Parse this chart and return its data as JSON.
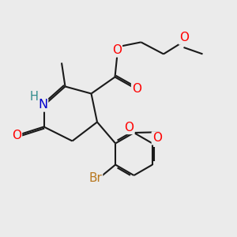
{
  "bg_color": "#ebebeb",
  "bond_color": "#1a1a1a",
  "bond_width": 1.5,
  "dbo": 0.055,
  "atom_colors": {
    "O": "#ff0000",
    "N": "#0000cc",
    "Br": "#b87820",
    "H": "#2e8b8b",
    "C": "#1a1a1a"
  },
  "fs": 10.5
}
